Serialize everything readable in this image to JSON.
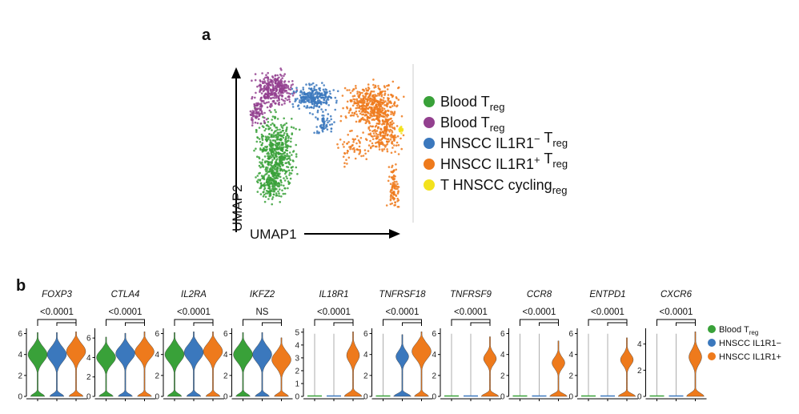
{
  "chart_data": [
    {
      "type": "scatter",
      "panel_label": "a",
      "xlabel": "UMAP1",
      "ylabel": "UMAP2",
      "legend": [
        {
          "name": "Blood T",
          "sub": "reg",
          "sup": "",
          "color": "#39a139"
        },
        {
          "name": "Blood T",
          "sub": "reg",
          "sup": "",
          "color": "#93408f"
        },
        {
          "name": "HNSCC IL1R1",
          "sup": "−",
          "after": " T",
          "sub": "reg",
          "color": "#3b78bd"
        },
        {
          "name": "HNSCC IL1R1",
          "sup": "+",
          "after": " T",
          "sub": "reg",
          "color": "#ee7a1c"
        },
        {
          "name": "T",
          "sub": "reg",
          "after": " HNSCC cycling",
          "sup": "",
          "color": "#f3e21d"
        }
      ]
    },
    {
      "type": "violin",
      "panel_label": "b",
      "groups": [
        "Blood Treg",
        "HNSCC IL1R1−",
        "HNSCC IL1R1+"
      ],
      "colors": [
        "#39a139",
        "#3b78bd",
        "#ee7a1c"
      ],
      "legend": [
        {
          "name": "Blood T",
          "sub": "reg",
          "color": "#39a139"
        },
        {
          "name": "HNSCC IL1R1−",
          "sub": "",
          "color": "#3b78bd"
        },
        {
          "name": "HNSCC IL1R1+",
          "sub": "",
          "color": "#ee7a1c"
        }
      ],
      "genes": [
        {
          "name": "FOXP3",
          "pvalue": "<0.0001",
          "ymax": 6.5,
          "ticks": [
            0,
            2,
            4,
            6
          ],
          "medians": [
            4,
            4,
            4.3
          ],
          "shape": [
            "high",
            "high",
            "high"
          ]
        },
        {
          "name": "CTLA4",
          "pvalue": "<0.0001",
          "ymax": 7,
          "ticks": [
            0,
            2,
            4,
            6
          ],
          "medians": [
            4,
            4.4,
            4.6
          ],
          "shape": [
            "high",
            "high",
            "high"
          ]
        },
        {
          "name": "IL2RA",
          "pvalue": "<0.0001",
          "ymax": 6.5,
          "ticks": [
            0,
            2,
            4,
            6
          ],
          "medians": [
            4,
            4.2,
            4.3
          ],
          "shape": [
            "high",
            "high",
            "high"
          ]
        },
        {
          "name": "IKFZ2",
          "pvalue": "NS",
          "ymax": 6.5,
          "ticks": [
            0,
            2,
            4,
            6
          ],
          "medians": [
            4,
            4,
            3.5
          ],
          "shape": [
            "high",
            "high",
            "high"
          ]
        },
        {
          "name": "IL18R1",
          "pvalue": "<0.0001",
          "ymax": 5.3,
          "ticks": [
            0,
            1,
            2,
            3,
            4,
            5
          ],
          "medians": [
            0,
            0,
            3.2
          ],
          "shape": [
            "flat",
            "flat",
            "mid"
          ]
        },
        {
          "name": "TNFRSF18",
          "pvalue": "<0.0001",
          "ymax": 6.5,
          "ticks": [
            0,
            2,
            4,
            6
          ],
          "medians": [
            0,
            3.8,
            4.3
          ],
          "shape": [
            "flat",
            "mid",
            "high"
          ]
        },
        {
          "name": "TNFRSF9",
          "pvalue": "<0.0001",
          "ymax": 6.5,
          "ticks": [
            0,
            2,
            4,
            6
          ],
          "medians": [
            0,
            0,
            3.6
          ],
          "shape": [
            "flat",
            "flat",
            "mid"
          ]
        },
        {
          "name": "CCR8",
          "pvalue": "<0.0001",
          "ymax": 6.5,
          "ticks": [
            0,
            2,
            4,
            6
          ],
          "medians": [
            0,
            0,
            3.2
          ],
          "shape": [
            "flat",
            "flat",
            "mid"
          ]
        },
        {
          "name": "ENTPD1",
          "pvalue": "<0.0001",
          "ymax": 6.5,
          "ticks": [
            0,
            2,
            4,
            6
          ],
          "medians": [
            0,
            0,
            3.5
          ],
          "shape": [
            "flat",
            "flat",
            "mid"
          ]
        },
        {
          "name": "CXCR6",
          "pvalue": "<0.0001",
          "ymax": 5.2,
          "ticks": [
            0,
            2,
            4
          ],
          "medians": [
            0,
            0,
            3.0
          ],
          "shape": [
            "flat",
            "flat",
            "mid"
          ]
        }
      ]
    }
  ]
}
